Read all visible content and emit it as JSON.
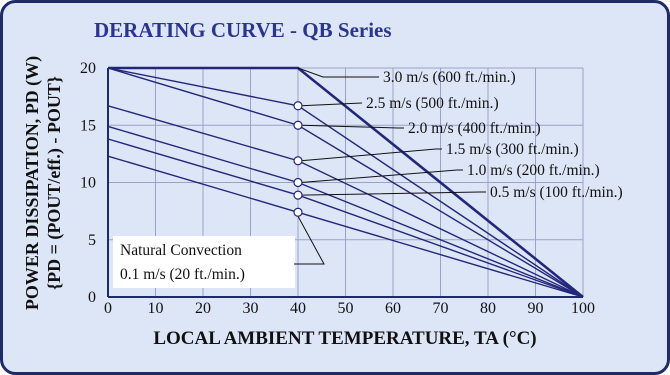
{
  "colors": {
    "background": "#dde6f7",
    "border": "#1f2a6b",
    "title": "#2a3590",
    "curve": "#23277a",
    "grid": "#9aa2c7",
    "text": "#111111"
  },
  "chart_data": {
    "type": "line",
    "title": "DERATING CURVE - QB Series",
    "xlabel": "LOCAL AMBIENT TEMPERATURE, TA (°C)",
    "ylabel_line1": "POWER DISSIPATION, PD (W)",
    "ylabel_line2": "{PD = (POUT/eff.) - POUT}",
    "xlim": [
      0,
      100
    ],
    "ylim": [
      0,
      20
    ],
    "xticks": [
      0,
      10,
      20,
      30,
      40,
      50,
      60,
      70,
      80,
      90,
      100
    ],
    "yticks": [
      0,
      5,
      10,
      15,
      20
    ],
    "grid": true,
    "series": [
      {
        "name": "3.0 m/s (600 ft./min.)",
        "x": [
          0,
          40,
          100
        ],
        "y": [
          20,
          20,
          0
        ]
      },
      {
        "name": "2.5 m/s (500 ft./min.)",
        "x": [
          0,
          40,
          100
        ],
        "y": [
          20,
          16.7,
          0
        ]
      },
      {
        "name": "2.0 m/s (400 ft./min.)",
        "x": [
          0,
          40,
          100
        ],
        "y": [
          20,
          15,
          0
        ]
      },
      {
        "name": "1.5 m/s (300 ft./min.)",
        "x": [
          0,
          40,
          100
        ],
        "y": [
          16.7,
          11.9,
          0
        ]
      },
      {
        "name": "1.0 m/s (200 ft./min.)",
        "x": [
          0,
          40,
          100
        ],
        "y": [
          14.9,
          10,
          0
        ]
      },
      {
        "name": "0.5 m/s (100 ft./min.)",
        "x": [
          0,
          40,
          100
        ],
        "y": [
          13.8,
          8.9,
          0
        ]
      },
      {
        "name": "Natural Convection 0.1 m/s (20 ft./min.)",
        "x": [
          0,
          40,
          100
        ],
        "y": [
          12.3,
          7.4,
          0
        ]
      }
    ],
    "annotation_lines": [
      "Natural Convection",
      "0.1 m/s (20 ft./min.)"
    ]
  }
}
